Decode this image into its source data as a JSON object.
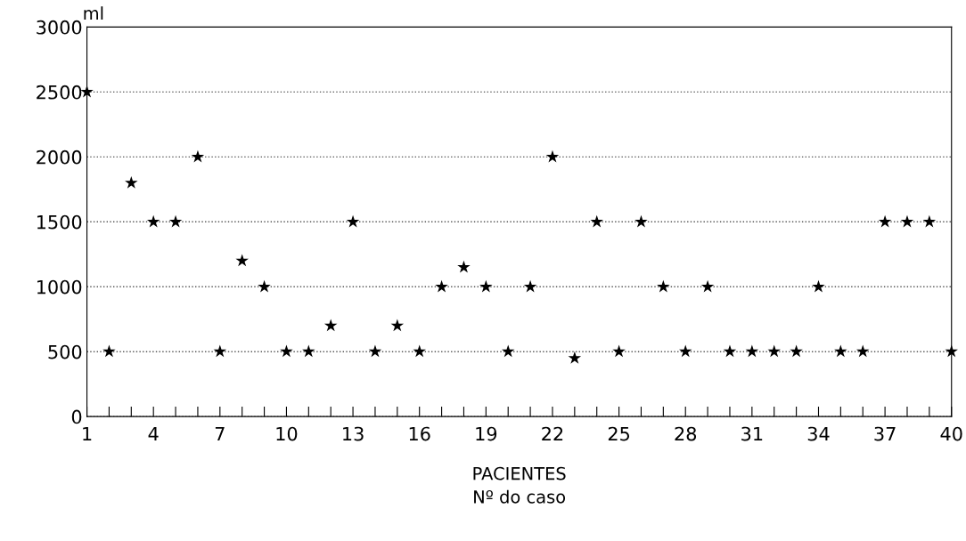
{
  "chart_data": {
    "type": "scatter",
    "xlabel": "PACIENTES\nNº do caso",
    "ylabel": "ml",
    "x": [
      1,
      2,
      3,
      4,
      5,
      6,
      7,
      8,
      9,
      10,
      11,
      12,
      13,
      14,
      15,
      16,
      17,
      18,
      19,
      20,
      21,
      22,
      23,
      24,
      25,
      26,
      27,
      28,
      29,
      30,
      31,
      32,
      33,
      34,
      35,
      36,
      37,
      38,
      39,
      40
    ],
    "series": [
      {
        "color": "#000000",
        "values": [
          2500,
          500,
          1800,
          1500,
          1500,
          2000,
          500,
          1200,
          1000,
          500,
          500,
          700,
          1500,
          500,
          700,
          500,
          1000,
          1150,
          1000,
          500,
          1000,
          2000,
          450,
          1500,
          500,
          1500,
          1000,
          500,
          1000,
          500,
          500,
          500,
          500,
          1000,
          500,
          500,
          1500,
          1500,
          1500,
          500
        ]
      }
    ],
    "xlim": [
      1,
      40
    ],
    "xticks": [
      1,
      {
        "value": 2,
        "label": null
      },
      {
        "value": 3,
        "label": null
      },
      4,
      {
        "value": 5,
        "label": null
      },
      {
        "value": 6,
        "label": null
      },
      7,
      {
        "value": 8,
        "label": null
      },
      {
        "value": 9,
        "label": null
      },
      10,
      {
        "value": 11,
        "label": null
      },
      {
        "value": 12,
        "label": null
      },
      13,
      {
        "value": 14,
        "label": null
      },
      {
        "value": 15,
        "label": null
      },
      16,
      {
        "value": 17,
        "label": null
      },
      {
        "value": 18,
        "label": null
      },
      19,
      {
        "value": 20,
        "label": null
      },
      {
        "value": 21,
        "label": null
      },
      22,
      {
        "value": 23,
        "label": null
      },
      {
        "value": 24,
        "label": null
      },
      25,
      {
        "value": 26,
        "label": null
      },
      {
        "value": 27,
        "label": null
      },
      28,
      {
        "value": 29,
        "label": null
      },
      {
        "value": 30,
        "label": null
      },
      31,
      {
        "value": 32,
        "label": null
      },
      {
        "value": 33,
        "label": null
      },
      34,
      {
        "value": 35,
        "label": null
      },
      {
        "value": 36,
        "label": null
      },
      37,
      {
        "value": 38,
        "label": null
      },
      {
        "value": 39,
        "label": null
      },
      40
    ],
    "ylim": [
      0,
      3000
    ],
    "yticks": [
      0,
      500,
      1000,
      1500,
      2000,
      2500,
      3000
    ],
    "grid": "y",
    "legend": false,
    "marker": "star"
  }
}
